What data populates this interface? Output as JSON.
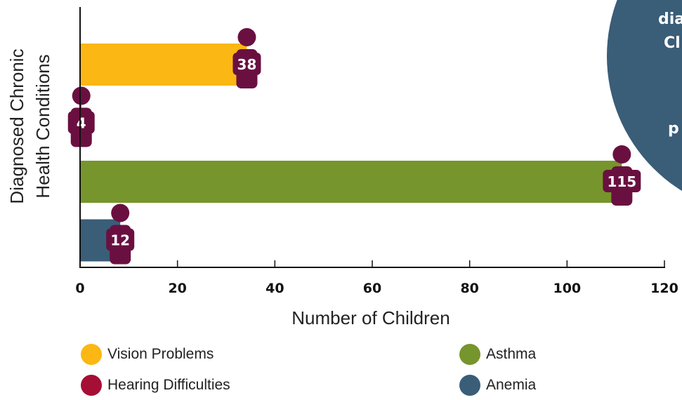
{
  "chart_data": {
    "type": "bar",
    "orientation": "horizontal",
    "categories": [
      "Vision Problems",
      "Hearing Difficulties",
      "Asthma",
      "Anemia"
    ],
    "values": [
      38,
      4,
      115,
      12
    ],
    "colors": [
      "#fbb713",
      "#a50f36",
      "#76952c",
      "#3a5d78"
    ],
    "badge_color": "#6a1040",
    "xlabel": "Number of Children",
    "ylabel_lines": [
      "Diagnosed Chronic",
      "Health Conditions"
    ],
    "xlim": [
      0,
      120
    ],
    "xticks": [
      "0",
      "20",
      "40",
      "60",
      "80",
      "100",
      "120"
    ],
    "legend_position": "bottom",
    "legend": [
      {
        "label": "Vision Problems",
        "color": "#fbb713"
      },
      {
        "label": "Hearing Difficulties",
        "color": "#a50f36"
      },
      {
        "label": "Asthma",
        "color": "#76952c"
      },
      {
        "label": "Anemia",
        "color": "#3a5d78"
      }
    ]
  },
  "corner_callout": {
    "color": "#3a5d78",
    "lines": [
      "dia",
      "Cl",
      "p"
    ]
  }
}
